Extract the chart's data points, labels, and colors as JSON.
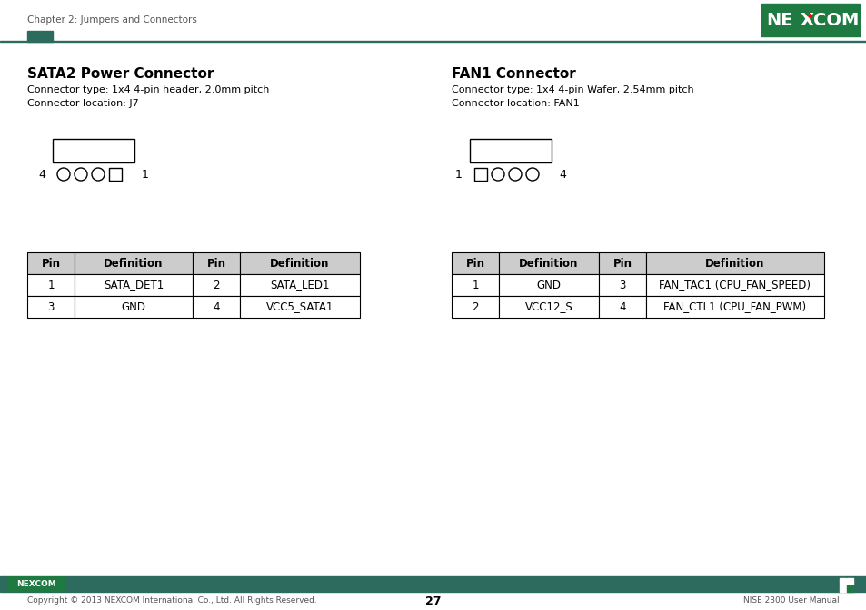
{
  "header_text": "Chapter 2: Jumpers and Connectors",
  "page_num": "27",
  "footer_left": "Copyright © 2013 NEXCOM International Co., Ltd. All Rights Reserved.",
  "footer_right": "NISE 2300 User Manual",
  "header_bar_color": "#2d6b5e",
  "nexcom_bg": "#1e7a40",
  "footer_bar_color": "#2d6b5e",
  "sata2_title": "SATA2 Power Connector",
  "sata2_line1": "Connector type: 1x4 4-pin header, 2.0mm pitch",
  "sata2_line2": "Connector location: J7",
  "fan1_title": "FAN1 Connector",
  "fan1_line1": "Connector type: 1x4 4-pin Wafer, 2.54mm pitch",
  "fan1_line2": "Connector location: FAN1",
  "sata2_table_headers": [
    "Pin",
    "Definition",
    "Pin",
    "Definition"
  ],
  "sata2_table_rows": [
    [
      "1",
      "SATA_DET1",
      "2",
      "SATA_LED1"
    ],
    [
      "3",
      "GND",
      "4",
      "VCC5_SATA1"
    ]
  ],
  "fan1_table_headers": [
    "Pin",
    "Definition",
    "Pin",
    "Definition"
  ],
  "fan1_table_rows": [
    [
      "1",
      "GND",
      "3",
      "FAN_TAC1 (CPU_FAN_SPEED)"
    ],
    [
      "2",
      "VCC12_S",
      "4",
      "FAN_CTL1 (CPU_FAN_PWM)"
    ]
  ],
  "bg_color": "#ffffff",
  "text_color": "#000000",
  "table_header_bg": "#cccccc",
  "table_border_color": "#000000"
}
